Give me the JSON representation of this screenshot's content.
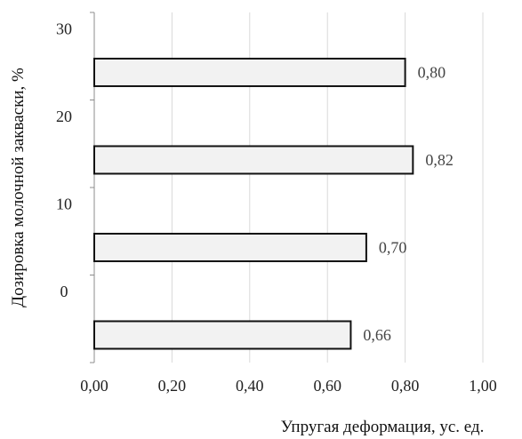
{
  "chart_data": {
    "type": "bar",
    "orientation": "horizontal",
    "categories": [
      "0",
      "10",
      "20",
      "30"
    ],
    "values": [
      0.66,
      0.7,
      0.82,
      0.8
    ],
    "data_labels": [
      "0,66",
      "0,70",
      "0,82",
      "0,80"
    ],
    "xlabel": "Упругая деформация, ус. ед.",
    "ylabel": "Дозировка молочной закваски, %",
    "xlim": [
      0,
      1.0
    ],
    "x_ticks": [
      0,
      0.2,
      0.4,
      0.6,
      0.8,
      1.0
    ],
    "x_tick_labels": [
      "0,00",
      "0,20",
      "0,40",
      "0,60",
      "0,80",
      "1,00"
    ],
    "grid": "vertical",
    "legend": "none",
    "colors": {
      "bar_fill": "#f2f2f2",
      "bar_stroke": "#111111",
      "grid": "#d9d9d9",
      "axis": "#8c8c8c"
    }
  }
}
